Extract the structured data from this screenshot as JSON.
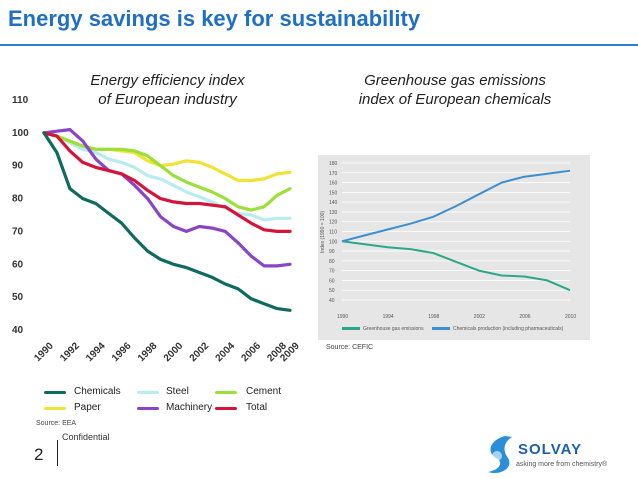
{
  "title": "Energy savings is key for sustainability",
  "left_chart_title": [
    "Energy efficiency index",
    "of European industry"
  ],
  "right_chart_title": [
    "Greenhouse gas emissions",
    "index of European chemicals"
  ],
  "colors": {
    "title": "#1f6fc4",
    "chemicals": "#0e6b5e",
    "steel": "#b8ecf0",
    "cement": "#9be03a",
    "paper": "#f2e233",
    "machinery": "#8a44c8",
    "total": "#d4143c",
    "ghg": "#2aa889",
    "chem_prod": "#3d8fd0"
  },
  "source_left": "Source: EEA",
  "source_right": "Source: CEFIC",
  "confidential": "Confidential",
  "page_number": "2",
  "logo": {
    "name": "SOLVAY",
    "tagline": "asking more from chemistry®"
  },
  "chart_data": [
    {
      "type": "line",
      "title": "Energy efficiency index of European industry",
      "x": [
        1990,
        1991,
        1992,
        1993,
        1994,
        1995,
        1996,
        1997,
        1998,
        1999,
        2000,
        2001,
        2002,
        2003,
        2004,
        2005,
        2006,
        2007,
        2008,
        2009
      ],
      "x_tick_labels": [
        "1990",
        "1992",
        "1994",
        "1996",
        "1998",
        "2000",
        "2002",
        "2004",
        "2006",
        "2008",
        "2009"
      ],
      "ylim": [
        40,
        110
      ],
      "y_ticks": [
        40,
        50,
        60,
        70,
        80,
        90,
        100,
        110
      ],
      "series": [
        {
          "name": "Chemicals",
          "values": [
            100,
            94,
            83,
            80,
            78.5,
            75.5,
            72.5,
            68,
            64,
            61.5,
            60,
            59,
            57.5,
            56,
            54,
            52.5,
            49.5,
            48,
            46.5,
            46
          ]
        },
        {
          "name": "Steel",
          "values": [
            100,
            99,
            97,
            95,
            94,
            92,
            91,
            89.5,
            87,
            86,
            84,
            82,
            80.5,
            79,
            77,
            75.5,
            75,
            73.5,
            74,
            74
          ]
        },
        {
          "name": "Cement",
          "values": [
            100,
            99,
            97.5,
            96,
            95,
            95,
            95,
            94.5,
            93,
            90,
            87,
            85,
            83.5,
            82,
            80,
            77.5,
            76.5,
            77.5,
            81,
            83
          ]
        },
        {
          "name": "Paper",
          "values": [
            100,
            99,
            97.5,
            96,
            95,
            95,
            94.5,
            94,
            91.5,
            90,
            90.5,
            91.5,
            91,
            89.5,
            87.5,
            85.5,
            85.5,
            86,
            87.5,
            88
          ]
        },
        {
          "name": "Machinery",
          "values": [
            100,
            100.5,
            101,
            97.5,
            92,
            88.5,
            87.5,
            84,
            80,
            74.5,
            71.5,
            70,
            71.5,
            71,
            70,
            66.5,
            62.5,
            59.5,
            59.5,
            60
          ]
        },
        {
          "name": "Total",
          "values": [
            100,
            99,
            94.5,
            91,
            89.5,
            88.5,
            87.5,
            85.5,
            82.5,
            80,
            79,
            78.5,
            78.5,
            78,
            77.5,
            75,
            72.5,
            70.5,
            70,
            70
          ]
        }
      ],
      "legend": [
        "Chemicals",
        "Steel",
        "Cement",
        "Paper",
        "Machinery",
        "Total"
      ]
    },
    {
      "type": "line",
      "title": "Greenhouse gas emissions index of European chemicals",
      "ylabel": "Index (1990 = 100)",
      "x": [
        1990,
        1992,
        1994,
        1996,
        1998,
        2000,
        2002,
        2004,
        2006,
        2008,
        2010
      ],
      "x_tick_labels": [
        "1990",
        "1994",
        "1998",
        "2002",
        "2006",
        "2010"
      ],
      "ylim": [
        40,
        180
      ],
      "y_ticks": [
        40,
        50,
        60,
        70,
        80,
        90,
        100,
        110,
        120,
        130,
        140,
        150,
        160,
        170,
        180
      ],
      "series": [
        {
          "name": "Greenhouse gas emissions",
          "values": [
            100,
            97,
            94,
            92,
            88,
            79,
            70,
            65,
            64,
            60,
            50
          ]
        },
        {
          "name": "Chemicals production (including pharmaceuticals)",
          "values": [
            100,
            106,
            112,
            118,
            125,
            136,
            148,
            160,
            166,
            169,
            172
          ]
        }
      ],
      "legend": [
        "Greenhouse gas emissions",
        "Chemicals production (including pharmaceuticals)"
      ]
    }
  ]
}
